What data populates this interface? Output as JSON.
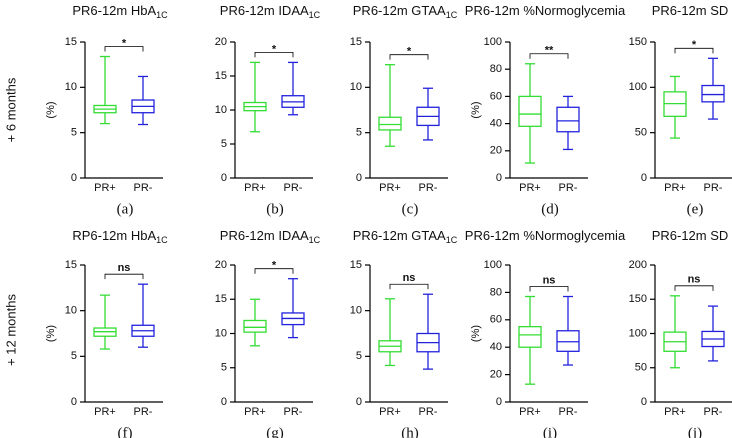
{
  "row_labels": [
    "+ 6 months",
    "+ 12 months"
  ],
  "chart_data": [
    {
      "type": "box",
      "title": "PR6-12m HbA",
      "title_sub": "1C",
      "ylabel": "(%)",
      "label": "(a)",
      "significance": "*",
      "categories": [
        "PR+",
        "PR-"
      ],
      "ylim": [
        0,
        15
      ],
      "yticks": [
        0,
        5,
        10,
        15
      ],
      "boxes": [
        {
          "color": "#33dd33",
          "min": 6,
          "q1": 7.2,
          "median": 7.6,
          "q3": 8.0,
          "max": 13.4
        },
        {
          "color": "#2222dd",
          "min": 5.9,
          "q1": 7.2,
          "median": 7.9,
          "q3": 8.6,
          "max": 11.2
        }
      ]
    },
    {
      "type": "box",
      "title": "PR6-12m IDAA",
      "title_sub": "1C",
      "label": "(b)",
      "significance": "*",
      "categories": [
        "PR+",
        "PR-"
      ],
      "ylim": [
        0,
        20
      ],
      "yticks": [
        0,
        5,
        10,
        15,
        20
      ],
      "boxes": [
        {
          "color": "#33dd33",
          "min": 6.8,
          "q1": 9.9,
          "median": 10.5,
          "q3": 11.1,
          "max": 17
        },
        {
          "color": "#2222dd",
          "min": 9.3,
          "q1": 10.4,
          "median": 11.2,
          "q3": 12.1,
          "max": 17
        }
      ]
    },
    {
      "type": "box",
      "title": "PR6-12m GTAA",
      "title_sub": "1C",
      "label": "(c)",
      "significance": "*",
      "categories": [
        "PR+",
        "PR-"
      ],
      "ylim": [
        0,
        15
      ],
      "yticks": [
        0,
        5,
        10,
        15
      ],
      "boxes": [
        {
          "color": "#33dd33",
          "min": 3.5,
          "q1": 5.3,
          "median": 5.9,
          "q3": 6.7,
          "max": 12.5
        },
        {
          "color": "#2222dd",
          "min": 4.2,
          "q1": 5.8,
          "median": 6.8,
          "q3": 7.8,
          "max": 9.9
        }
      ]
    },
    {
      "type": "box",
      "title": "PR6-12m %Normoglycemia",
      "ylabel": "(%)",
      "label": "(d)",
      "significance": "**",
      "categories": [
        "PR+",
        "PR-"
      ],
      "ylim": [
        0,
        100
      ],
      "yticks": [
        0,
        20,
        40,
        60,
        80,
        100
      ],
      "boxes": [
        {
          "color": "#33dd33",
          "min": 11,
          "q1": 38,
          "median": 47,
          "q3": 60,
          "max": 84
        },
        {
          "color": "#2222dd",
          "min": 21,
          "q1": 34,
          "median": 42,
          "q3": 52,
          "max": 60
        }
      ]
    },
    {
      "type": "box",
      "title": "PR6-12m SD",
      "label": "(e)",
      "significance": "*",
      "categories": [
        "PR+",
        "PR-"
      ],
      "ylim": [
        0,
        150
      ],
      "yticks": [
        0,
        50,
        100,
        150
      ],
      "boxes": [
        {
          "color": "#33dd33",
          "min": 44,
          "q1": 68,
          "median": 82,
          "q3": 95,
          "max": 112
        },
        {
          "color": "#2222dd",
          "min": 65,
          "q1": 84,
          "median": 92,
          "q3": 102,
          "max": 132
        }
      ]
    },
    {
      "type": "box",
      "title": "RP6-12m HbA",
      "title_sub": "1C",
      "ylabel": "(%)",
      "label": "(f)",
      "significance": "ns",
      "categories": [
        "PR+",
        "PR-"
      ],
      "ylim": [
        0,
        15
      ],
      "yticks": [
        0,
        5,
        10,
        15
      ],
      "boxes": [
        {
          "color": "#33dd33",
          "min": 5.8,
          "q1": 7.2,
          "median": 7.7,
          "q3": 8.1,
          "max": 11.7
        },
        {
          "color": "#2222dd",
          "min": 6,
          "q1": 7.2,
          "median": 7.8,
          "q3": 8.4,
          "max": 12.9
        }
      ]
    },
    {
      "type": "box",
      "title": "PR6-12m IDAA",
      "title_sub": "1C",
      "label": "(g)",
      "significance": "*",
      "categories": [
        "PR+",
        "PR-"
      ],
      "ylim": [
        0,
        20
      ],
      "yticks": [
        0,
        5,
        10,
        15,
        20
      ],
      "boxes": [
        {
          "color": "#33dd33",
          "min": 8.2,
          "q1": 10.2,
          "median": 10.9,
          "q3": 11.9,
          "max": 15
        },
        {
          "color": "#2222dd",
          "min": 9.4,
          "q1": 11.3,
          "median": 12.2,
          "q3": 13,
          "max": 18
        }
      ]
    },
    {
      "type": "box",
      "title": "PR6-12m GTAA",
      "title_sub": "1C",
      "label": "(h)",
      "significance": "ns",
      "categories": [
        "PR+",
        "PR-"
      ],
      "ylim": [
        0,
        15
      ],
      "yticks": [
        0,
        5,
        10,
        15
      ],
      "boxes": [
        {
          "color": "#33dd33",
          "min": 4,
          "q1": 5.5,
          "median": 6.1,
          "q3": 6.7,
          "max": 11.3
        },
        {
          "color": "#2222dd",
          "min": 3.6,
          "q1": 5.5,
          "median": 6.5,
          "q3": 7.5,
          "max": 11.8
        }
      ]
    },
    {
      "type": "box",
      "title": "PR6-12m %Normoglycemia",
      "ylabel": "(%)",
      "label": "(i)",
      "significance": "ns",
      "categories": [
        "PR+",
        "PR-"
      ],
      "ylim": [
        0,
        100
      ],
      "yticks": [
        0,
        20,
        40,
        60,
        80,
        100
      ],
      "boxes": [
        {
          "color": "#33dd33",
          "min": 13,
          "q1": 40,
          "median": 49,
          "q3": 55,
          "max": 77
        },
        {
          "color": "#2222dd",
          "min": 27,
          "q1": 37,
          "median": 44,
          "q3": 52,
          "max": 77
        }
      ]
    },
    {
      "type": "box",
      "title": "PR6-12m SD",
      "label": "(j)",
      "significance": "ns",
      "categories": [
        "PR+",
        "PR-"
      ],
      "ylim": [
        0,
        200
      ],
      "yticks": [
        0,
        50,
        100,
        150,
        200
      ],
      "boxes": [
        {
          "color": "#33dd33",
          "min": 50,
          "q1": 74,
          "median": 88,
          "q3": 102,
          "max": 155
        },
        {
          "color": "#2222dd",
          "min": 60,
          "q1": 81,
          "median": 92,
          "q3": 103,
          "max": 140
        }
      ]
    }
  ]
}
